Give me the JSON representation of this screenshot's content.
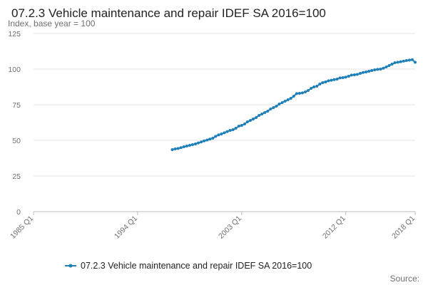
{
  "chart_data": {
    "type": "line",
    "title": "07.2.3 Vehicle maintenance and repair IDEF SA 2016=100",
    "subtitle": "Index, base year = 100",
    "xlabel": "",
    "ylabel": "",
    "x_ticks": [
      "1985 Q1",
      "1994 Q1",
      "2003 Q1",
      "2012 Q1",
      "2018 Q1"
    ],
    "y_ticks": [
      0,
      25,
      50,
      75,
      100,
      125
    ],
    "ylim": [
      0,
      125
    ],
    "xlim": [
      "1985 Q1",
      "2018 Q1"
    ],
    "grid": true,
    "legend": "bottom",
    "source_label": "Source:",
    "series": [
      {
        "name": "07.2.3 Vehicle maintenance and repair IDEF SA 2016=100",
        "color": "#1f7fb8",
        "x": [
          "1997 Q1",
          "1997 Q2",
          "1997 Q3",
          "1997 Q4",
          "1998 Q1",
          "1998 Q2",
          "1998 Q3",
          "1998 Q4",
          "1999 Q1",
          "1999 Q2",
          "1999 Q3",
          "1999 Q4",
          "2000 Q1",
          "2000 Q2",
          "2000 Q3",
          "2000 Q4",
          "2001 Q1",
          "2001 Q2",
          "2001 Q3",
          "2001 Q4",
          "2002 Q1",
          "2002 Q2",
          "2002 Q3",
          "2002 Q4",
          "2003 Q1",
          "2003 Q2",
          "2003 Q3",
          "2003 Q4",
          "2004 Q1",
          "2004 Q2",
          "2004 Q3",
          "2004 Q4",
          "2005 Q1",
          "2005 Q2",
          "2005 Q3",
          "2005 Q4",
          "2006 Q1",
          "2006 Q2",
          "2006 Q3",
          "2006 Q4",
          "2007 Q1",
          "2007 Q2",
          "2007 Q3",
          "2007 Q4",
          "2008 Q1",
          "2008 Q2",
          "2008 Q3",
          "2008 Q4",
          "2009 Q1",
          "2009 Q2",
          "2009 Q3",
          "2009 Q4",
          "2010 Q1",
          "2010 Q2",
          "2010 Q3",
          "2010 Q4",
          "2011 Q1",
          "2011 Q2",
          "2011 Q3",
          "2011 Q4",
          "2012 Q1",
          "2012 Q2",
          "2012 Q3",
          "2012 Q4",
          "2013 Q1",
          "2013 Q2",
          "2013 Q3",
          "2013 Q4",
          "2014 Q1",
          "2014 Q2",
          "2014 Q3",
          "2014 Q4",
          "2015 Q1",
          "2015 Q2",
          "2015 Q3",
          "2015 Q4",
          "2016 Q1",
          "2016 Q2",
          "2016 Q3",
          "2016 Q4",
          "2017 Q1",
          "2017 Q2",
          "2017 Q3",
          "2017 Q4",
          "2018 Q1"
        ],
        "values": [
          43.5,
          44.0,
          44.3,
          44.9,
          45.5,
          46.0,
          46.5,
          47.0,
          47.5,
          48.2,
          48.9,
          49.6,
          50.2,
          50.9,
          51.5,
          52.8,
          53.8,
          54.5,
          55.3,
          56.2,
          57.0,
          57.5,
          58.5,
          60.0,
          60.5,
          61.5,
          63.0,
          64.0,
          65.0,
          66.0,
          67.5,
          68.5,
          69.5,
          70.5,
          72.0,
          73.0,
          74.0,
          75.5,
          76.5,
          77.5,
          78.5,
          79.5,
          81.0,
          82.8,
          83.0,
          83.3,
          84.0,
          85.0,
          86.5,
          87.5,
          88.0,
          89.5,
          90.5,
          91.0,
          91.8,
          92.2,
          92.6,
          93.0,
          93.8,
          94.0,
          94.4,
          95.0,
          95.8,
          96.0,
          96.3,
          97.0,
          97.6,
          98.0,
          98.5,
          99.0,
          99.5,
          99.8,
          100.0,
          100.6,
          101.5,
          102.5,
          103.5,
          104.5,
          104.8,
          105.2,
          105.6,
          106.0,
          106.3,
          106.6,
          104.8
        ]
      }
    ]
  }
}
